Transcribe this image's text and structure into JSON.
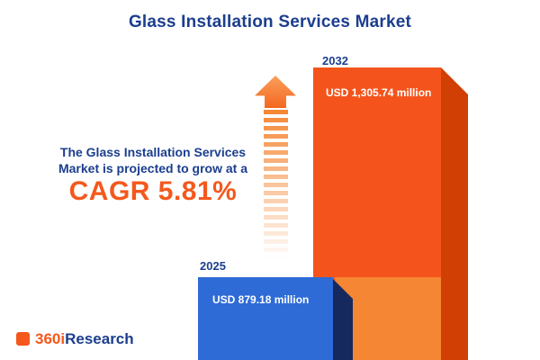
{
  "title": "Glass Installation Services Market",
  "description": {
    "line1": "The Glass Installation Services",
    "line2": "Market is projected to grow at a",
    "cagr": "CAGR 5.81%"
  },
  "chart_data": {
    "type": "bar",
    "title": "Glass Installation Services Market",
    "categories": [
      "2025",
      "2032"
    ],
    "values": [
      879.18,
      1305.74
    ],
    "unit": "USD million",
    "value_labels": [
      "USD 879.18 million",
      "USD 1,305.74 million"
    ],
    "cagr_percent": 5.81,
    "ylim": [
      0,
      1400
    ],
    "legend": "none",
    "grid": "off"
  },
  "logo": {
    "prefix": "360i",
    "suffix": "Research"
  },
  "colors": {
    "navy": "#1b3e8e",
    "accent_orange": "#f4581c",
    "bar_blue": "#2e6bd6",
    "bar_blue_side": "#15295f",
    "bar_orange": "#f4541c",
    "bar_orange_side": "#d13f04",
    "bar_orange_light": "#f58634"
  }
}
